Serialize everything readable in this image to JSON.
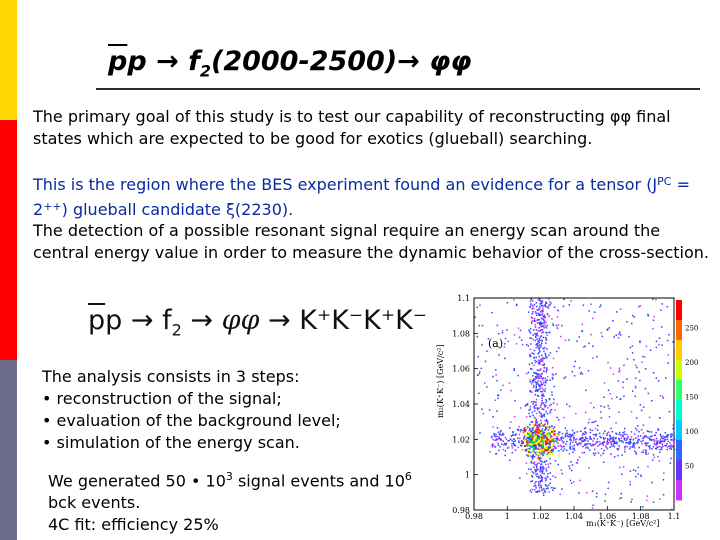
{
  "title": {
    "pbar": "p",
    "p": "p",
    "arrow1": "→",
    "f": "f",
    "sub": "2",
    "range": "(2000-2500)",
    "arrow2": "→",
    "phiphi": "φφ"
  },
  "paragraphs": {
    "p1": "The primary goal of this study is to test our capability of reconstructing φφ final states which are expected to be good for exotics (glueball) searching.",
    "p2_a": "This is the region where the BES experiment found an evidence for a tensor (J",
    "p2_sup": "PC",
    "p2_b": " = 2",
    "p2_sup2": "++",
    "p2_c": ") glueball candidate ξ(2230).",
    "p3": "The detection of a possible resonant signal require an energy scan around the central energy value in order to measure the dynamic behavior of the cross-section."
  },
  "reaction": {
    "pbar": "p",
    "p": "p",
    "arrow": "→",
    "f": "f",
    "f_sub": "2",
    "arrow2": "→",
    "phiphi": "φφ",
    "arrow3": "→",
    "final": "K⁺K⁻K⁺K⁻"
  },
  "steps": {
    "intro": "The analysis consists in 3 steps:",
    "items": [
      "reconstruction of the signal;",
      "evaluation of the background level;",
      "simulation of the energy scan."
    ]
  },
  "generation": {
    "line1_a": "We generated 50 • 10",
    "line1_sup": "3",
    "line1_b": " signal events and 10",
    "line1_sup2": "6",
    "line2": "bck events.",
    "line3": "4C fit: efficiency 25%"
  },
  "plot": {
    "panel_label": "(a)",
    "ylabel": "m₂(K⁺K⁻) [GeV/c²]",
    "xlabel": "m₁(K⁺K⁻) [GeV/c²]",
    "yticks": [
      "1.1",
      "1.08",
      "1.06",
      "1.04",
      "1.02",
      "1",
      "0.98"
    ],
    "xticks": [
      "0.98",
      "1",
      "1.02",
      "1.04",
      "1.06",
      "1.08",
      "1.1"
    ],
    "colorbar_ticks": [
      "250",
      "200",
      "150",
      "100",
      "50"
    ],
    "xlim": [
      0.98,
      1.1
    ],
    "ylim": [
      0.98,
      1.1
    ],
    "colors": {
      "hot": "#ffff00",
      "peak": "#ff2000",
      "mid": "#00cc66",
      "low": "#3344ff",
      "sparse": "#cc33ff"
    }
  }
}
